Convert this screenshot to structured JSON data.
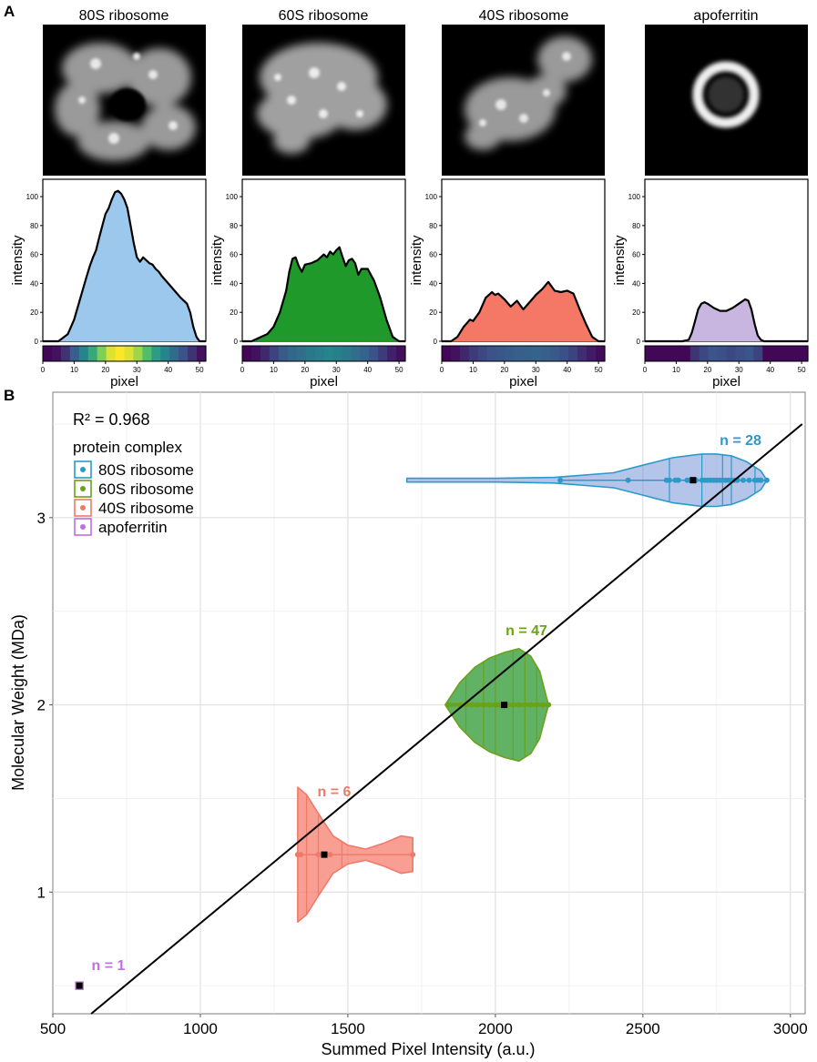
{
  "panel_a_label": "A",
  "panel_b_label": "B",
  "colors": {
    "s80": "#2b9ac9",
    "s80_fill": "#9cc8ee",
    "s60": "#6aa218",
    "s60_fill": "#1f9a2a",
    "s40": "#f07a6a",
    "s40_fill": "#f57866",
    "apo": "#c070e0",
    "apo_fill": "#c9b6e0"
  },
  "chart_data": [
    {
      "type": "area",
      "title": "80S ribosome",
      "xlabel": "pixel",
      "ylabel": "intensity",
      "xlim": [
        0,
        52
      ],
      "ylim": [
        0,
        112
      ],
      "xticks": [
        0,
        10,
        20,
        30,
        40,
        50
      ],
      "yticks": [
        0,
        20,
        40,
        60,
        80,
        100
      ],
      "x": [
        0,
        5,
        8,
        10,
        12,
        14,
        15,
        16,
        17,
        18,
        19,
        20,
        21,
        22,
        23,
        24,
        25,
        26,
        27,
        28,
        29,
        30,
        31,
        32,
        33,
        34,
        35,
        36,
        37,
        38,
        40,
        42,
        44,
        46,
        47,
        48,
        49,
        50,
        52
      ],
      "values": [
        0,
        0,
        5,
        15,
        30,
        45,
        52,
        58,
        63,
        72,
        80,
        88,
        92,
        98,
        103,
        104,
        102,
        98,
        92,
        80,
        68,
        58,
        55,
        58,
        56,
        54,
        53,
        50,
        48,
        45,
        40,
        35,
        30,
        26,
        20,
        10,
        3,
        0,
        0
      ],
      "colorbar": [
        0.02,
        0.05,
        0.15,
        0.3,
        0.45,
        0.6,
        0.8,
        0.95,
        1.0,
        0.95,
        0.85,
        0.7,
        0.55,
        0.45,
        0.35,
        0.25,
        0.15,
        0.05
      ]
    },
    {
      "type": "area",
      "title": "60S ribosome",
      "xlabel": "pixel",
      "ylabel": "intensity",
      "xlim": [
        0,
        52
      ],
      "ylim": [
        0,
        112
      ],
      "xticks": [
        0,
        10,
        20,
        30,
        40,
        50
      ],
      "yticks": [
        0,
        20,
        40,
        60,
        80,
        100
      ],
      "x": [
        0,
        3,
        5,
        8,
        10,
        12,
        14,
        15,
        16,
        17,
        18,
        19,
        20,
        22,
        24,
        26,
        27,
        28,
        29,
        30,
        31,
        32,
        33,
        34,
        35,
        36,
        37,
        38,
        40,
        42,
        44,
        46,
        48,
        50,
        52
      ],
      "values": [
        0,
        0,
        2,
        5,
        10,
        20,
        35,
        48,
        57,
        58,
        52,
        48,
        53,
        54,
        56,
        60,
        58,
        62,
        60,
        63,
        65,
        58,
        52,
        56,
        57,
        54,
        46,
        50,
        50,
        42,
        30,
        15,
        3,
        0,
        0
      ],
      "colorbar": [
        0.02,
        0.05,
        0.12,
        0.2,
        0.28,
        0.33,
        0.36,
        0.4,
        0.42,
        0.45,
        0.43,
        0.4,
        0.36,
        0.32,
        0.25,
        0.18,
        0.1,
        0.04
      ]
    },
    {
      "type": "area",
      "title": "40S ribosome",
      "xlabel": "pixel",
      "ylabel": "intensity",
      "xlim": [
        0,
        52
      ],
      "ylim": [
        0,
        112
      ],
      "xticks": [
        0,
        10,
        20,
        30,
        40,
        50
      ],
      "yticks": [
        0,
        20,
        40,
        60,
        80,
        100
      ],
      "x": [
        0,
        3,
        5,
        7,
        9,
        10,
        12,
        14,
        16,
        17,
        18,
        20,
        22,
        24,
        26,
        28,
        30,
        32,
        34,
        35,
        36,
        38,
        40,
        42,
        44,
        46,
        48,
        50,
        52
      ],
      "values": [
        0,
        0,
        3,
        10,
        15,
        14,
        20,
        30,
        34,
        32,
        33,
        29,
        24,
        28,
        22,
        27,
        32,
        36,
        41,
        38,
        35,
        34,
        35,
        33,
        22,
        12,
        3,
        0,
        0
      ],
      "colorbar": [
        0.02,
        0.05,
        0.12,
        0.18,
        0.22,
        0.25,
        0.27,
        0.29,
        0.3,
        0.31,
        0.32,
        0.3,
        0.28,
        0.24,
        0.2,
        0.14,
        0.08,
        0.03
      ]
    },
    {
      "type": "area",
      "title": "apoferritin",
      "xlabel": "pixel",
      "ylabel": "intensity",
      "xlim": [
        0,
        52
      ],
      "ylim": [
        0,
        112
      ],
      "xticks": [
        0,
        10,
        20,
        30,
        40,
        50
      ],
      "yticks": [
        0,
        20,
        40,
        60,
        80,
        100
      ],
      "x": [
        0,
        12,
        14,
        15,
        16,
        17,
        18,
        19,
        20,
        22,
        24,
        26,
        28,
        30,
        32,
        33,
        34,
        35,
        36,
        37,
        38,
        52
      ],
      "values": [
        0,
        0,
        1,
        6,
        14,
        22,
        26,
        27,
        26,
        23,
        21,
        21,
        23,
        26,
        29,
        28,
        22,
        12,
        4,
        1,
        0,
        0
      ],
      "colorbar": [
        0.02,
        0.02,
        0.02,
        0.02,
        0.02,
        0.15,
        0.22,
        0.26,
        0.24,
        0.22,
        0.24,
        0.26,
        0.2,
        0.02,
        0.02,
        0.02,
        0.02,
        0.02
      ]
    },
    {
      "type": "violin",
      "annotation": "R² = 0.968",
      "xlabel": "Summed Pixel Intensity (a.u.)",
      "ylabel": "Molecular Weight (MDa)",
      "xlim": [
        500,
        3050
      ],
      "ylim": [
        0.35,
        3.67
      ],
      "xticks": [
        500,
        1000,
        1500,
        2000,
        2500,
        3000
      ],
      "yticks": [
        1,
        2,
        3
      ],
      "grid": true,
      "legend": {
        "title": "protein complex",
        "position": "top-left"
      },
      "fit_line": {
        "x": [
          630,
          3040
        ],
        "y": [
          0.35,
          3.5
        ]
      },
      "series": [
        {
          "name": "80S ribosome",
          "y": 3.2,
          "count_label": "n = 28",
          "mean": 2670,
          "profile_x": [
            1700,
            1800,
            2000,
            2200,
            2400,
            2500,
            2550,
            2600,
            2650,
            2700,
            2750,
            2800,
            2850,
            2900,
            2920
          ],
          "profile_w": [
            0.01,
            0.01,
            0.01,
            0.015,
            0.04,
            0.08,
            0.1,
            0.12,
            0.13,
            0.14,
            0.14,
            0.13,
            0.1,
            0.05,
            0.0
          ],
          "quantiles": [
            2590,
            2700,
            2770,
            2800,
            2880
          ],
          "points": [
            2220,
            2450,
            2580,
            2590,
            2610,
            2620,
            2650,
            2660,
            2680,
            2700,
            2710,
            2720,
            2730,
            2740,
            2750,
            2760,
            2770,
            2780,
            2790,
            2800,
            2810,
            2820,
            2840,
            2860,
            2880,
            2890,
            2900,
            2920
          ]
        },
        {
          "name": "60S ribosome",
          "y": 2.0,
          "count_label": "n = 47",
          "mean": 2030,
          "profile_x": [
            1830,
            1880,
            1930,
            1980,
            2030,
            2080,
            2120,
            2150,
            2180
          ],
          "profile_w": [
            0.0,
            0.12,
            0.2,
            0.25,
            0.28,
            0.3,
            0.26,
            0.18,
            0.0
          ],
          "quantiles": [
            1900,
            1960,
            2000,
            2060,
            2100,
            2140
          ],
          "points": [
            1840,
            1880,
            1900,
            1920,
            1940,
            1960,
            1980,
            2000,
            2010,
            2020,
            2040,
            2060,
            2080,
            2100,
            2120,
            2140,
            2160,
            2180
          ]
        },
        {
          "name": "40S ribosome",
          "y": 1.2,
          "count_label": "n = 6",
          "mean": 1420,
          "profile_x": [
            1330,
            1360,
            1400,
            1450,
            1500,
            1560,
            1620,
            1680,
            1720
          ],
          "profile_w": [
            0.36,
            0.32,
            0.22,
            0.1,
            0.05,
            0.03,
            0.06,
            0.1,
            0.09
          ],
          "quantiles": [
            1360,
            1400,
            1480
          ],
          "points": [
            1330,
            1340,
            1400,
            1440,
            1720
          ]
        },
        {
          "name": "apoferritin",
          "y": 0.5,
          "count_label": "n = 1",
          "mean": 590,
          "profile_x": [],
          "profile_w": [],
          "quantiles": [],
          "points": [
            590
          ]
        }
      ]
    }
  ]
}
